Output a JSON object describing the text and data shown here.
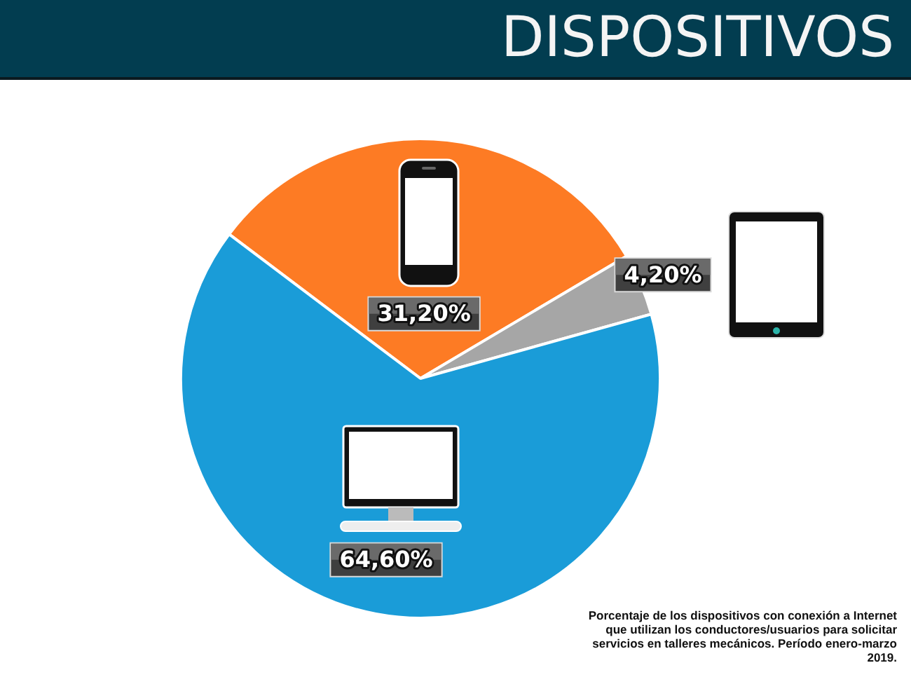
{
  "chart_data": {
    "type": "pie",
    "title": "DISPOSITIVOS",
    "categories": [
      null,
      null,
      null
    ],
    "values": [
      31.2,
      4.2,
      64.6
    ],
    "colors": [
      "#fd7b24",
      "#a6a6a6",
      "#1a9cd8"
    ],
    "value_labels": [
      "31,20%",
      "4,20%",
      "64,60%"
    ],
    "legend": false,
    "annotations": [
      "Porcentaje de los dispositivos con conexión a Internet que utilizan los conductores/usuarios para solicitar servicios en talleres mecánicos. Período enero-marzo 2019."
    ]
  }
}
